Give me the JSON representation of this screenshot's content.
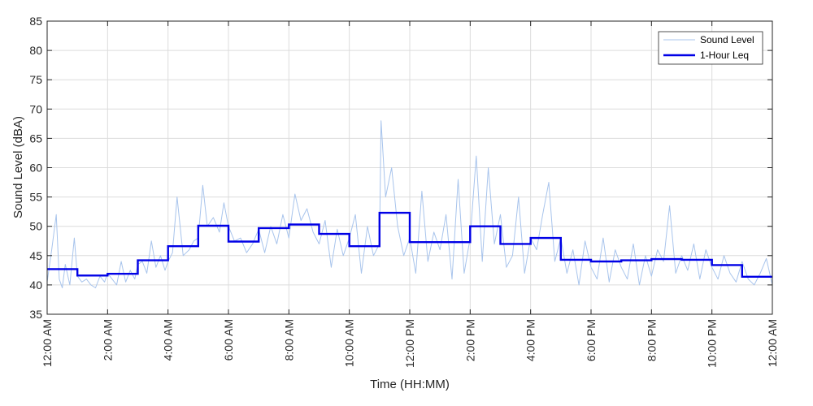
{
  "chart_data": {
    "type": "line",
    "xlabel": "Time (HH:MM)",
    "ylabel": "Sound Level (dBA)",
    "xlim": [
      0,
      24
    ],
    "ylim": [
      35,
      85
    ],
    "grid": true,
    "legend_position": "top-right",
    "x_ticks": [
      0,
      2,
      4,
      6,
      8,
      10,
      12,
      14,
      16,
      18,
      20,
      22,
      24
    ],
    "x_tick_labels": [
      "12:00 AM",
      "2:00 AM",
      "4:00 AM",
      "6:00 AM",
      "8:00 AM",
      "10:00 AM",
      "12:00 PM",
      "2:00 PM",
      "4:00 PM",
      "6:00 PM",
      "8:00 PM",
      "10:00 PM",
      "12:00 AM"
    ],
    "y_ticks": [
      35,
      40,
      45,
      50,
      55,
      60,
      65,
      70,
      75,
      80,
      85
    ],
    "y_tick_labels": [
      "35",
      "40",
      "45",
      "50",
      "55",
      "60",
      "65",
      "70",
      "75",
      "80",
      "85"
    ],
    "series": [
      {
        "name": "Sound Level",
        "color": "#a8c4ec",
        "x": [
          0.0,
          0.15,
          0.3,
          0.4,
          0.5,
          0.6,
          0.75,
          0.9,
          1.0,
          1.15,
          1.3,
          1.45,
          1.6,
          1.75,
          1.9,
          2.0,
          2.15,
          2.3,
          2.45,
          2.6,
          2.75,
          2.9,
          3.0,
          3.15,
          3.3,
          3.45,
          3.6,
          3.75,
          3.9,
          4.0,
          4.15,
          4.3,
          4.5,
          4.7,
          4.85,
          5.0,
          5.15,
          5.3,
          5.5,
          5.7,
          5.85,
          6.0,
          6.2,
          6.4,
          6.6,
          6.8,
          7.0,
          7.2,
          7.4,
          7.6,
          7.8,
          8.0,
          8.2,
          8.4,
          8.6,
          8.8,
          9.0,
          9.2,
          9.4,
          9.6,
          9.8,
          10.0,
          10.2,
          10.4,
          10.6,
          10.8,
          11.0,
          11.05,
          11.2,
          11.4,
          11.6,
          11.8,
          12.0,
          12.2,
          12.4,
          12.6,
          12.8,
          13.0,
          13.2,
          13.4,
          13.6,
          13.8,
          14.0,
          14.2,
          14.4,
          14.6,
          14.8,
          15.0,
          15.2,
          15.4,
          15.6,
          15.8,
          16.0,
          16.2,
          16.4,
          16.6,
          16.8,
          17.0,
          17.2,
          17.4,
          17.6,
          17.8,
          18.0,
          18.2,
          18.4,
          18.6,
          18.8,
          19.0,
          19.2,
          19.4,
          19.6,
          19.8,
          20.0,
          20.2,
          20.4,
          20.6,
          20.8,
          21.0,
          21.2,
          21.4,
          21.6,
          21.8,
          22.0,
          22.2,
          22.4,
          22.6,
          22.8,
          23.0,
          23.2,
          23.4,
          23.6,
          23.8,
          24.0
        ],
        "values": [
          40.5,
          46.0,
          52.0,
          41.0,
          39.5,
          43.5,
          40.0,
          48.0,
          41.5,
          40.5,
          41.0,
          40.0,
          39.5,
          41.5,
          40.5,
          42.0,
          41.0,
          40.0,
          44.0,
          40.5,
          42.5,
          41.0,
          43.5,
          44.0,
          42.0,
          47.5,
          43.0,
          45.0,
          42.5,
          44.0,
          45.5,
          55.0,
          45.0,
          46.0,
          47.5,
          48.0,
          57.0,
          50.0,
          51.5,
          49.0,
          54.0,
          50.0,
          47.5,
          48.0,
          45.5,
          47.0,
          49.5,
          45.5,
          50.0,
          47.0,
          52.0,
          48.0,
          55.5,
          51.0,
          53.0,
          49.0,
          47.0,
          51.0,
          43.0,
          49.5,
          45.0,
          48.0,
          52.0,
          42.0,
          50.0,
          45.0,
          47.0,
          68.0,
          55.0,
          60.0,
          50.0,
          45.0,
          48.0,
          42.0,
          56.0,
          44.0,
          49.0,
          46.0,
          52.0,
          41.0,
          58.0,
          42.0,
          48.0,
          62.0,
          44.0,
          60.0,
          47.0,
          52.0,
          43.0,
          45.0,
          55.0,
          42.0,
          48.0,
          46.0,
          52.0,
          57.5,
          44.0,
          48.0,
          42.0,
          46.0,
          40.0,
          47.5,
          43.0,
          41.0,
          48.0,
          40.5,
          46.0,
          43.0,
          41.0,
          47.0,
          40.0,
          45.0,
          41.5,
          46.0,
          44.0,
          53.5,
          42.0,
          45.0,
          42.5,
          47.0,
          41.0,
          46.0,
          43.0,
          41.0,
          45.0,
          42.0,
          40.5,
          44.0,
          41.0,
          40.0,
          42.0,
          44.5,
          40.0
        ]
      },
      {
        "name": "1-Hour Leq",
        "color": "#0000e6",
        "step": true,
        "x": [
          0,
          1,
          2,
          3,
          4,
          5,
          6,
          7,
          8,
          9,
          10,
          11,
          12,
          13,
          14,
          15,
          16,
          17,
          18,
          19,
          20,
          21,
          22,
          23,
          24
        ],
        "values": [
          42.7,
          41.6,
          41.9,
          44.2,
          46.6,
          50.1,
          47.4,
          49.7,
          50.3,
          48.7,
          46.6,
          52.3,
          47.3,
          47.3,
          50.0,
          47.0,
          48.0,
          44.3,
          44.0,
          44.2,
          44.4,
          44.3,
          43.4,
          41.4,
          41.4
        ]
      }
    ]
  }
}
